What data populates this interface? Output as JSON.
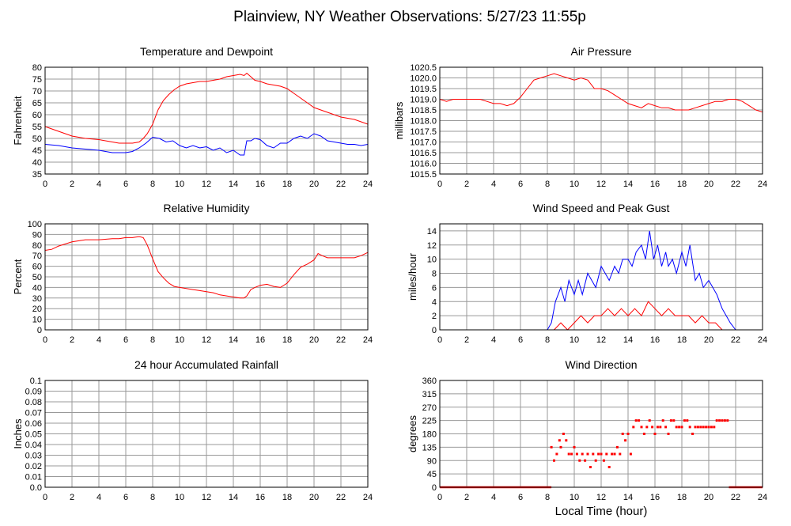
{
  "page": {
    "title": "Plainview, NY Weather Observations: 5/27/23 11:55p",
    "footer_xlabel": "Local Time (hour)"
  },
  "colors": {
    "temperature": "#ff0000",
    "dewpoint": "#0000ff",
    "pressure": "#ff0000",
    "humidity": "#ff0000",
    "wind_speed": "#ff0000",
    "peak_gust": "#0000ff",
    "rainfall": "#ff0000",
    "wind_direction": "#ff0000",
    "grid": "#999999",
    "frame": "#000000"
  },
  "chart_data": [
    {
      "id": "temp",
      "type": "line",
      "title": "Temperature and Dewpoint",
      "xlabel": "",
      "ylabel": "Fahrenheit",
      "xlim": [
        0,
        24
      ],
      "ylim": [
        35,
        80
      ],
      "xticks": [
        0,
        2,
        4,
        6,
        8,
        10,
        12,
        14,
        16,
        18,
        20,
        22,
        24
      ],
      "yticks": [
        35,
        40,
        45,
        50,
        55,
        60,
        65,
        70,
        75,
        80
      ],
      "grid": true,
      "series": [
        {
          "color": "temperature",
          "x": [
            0,
            1,
            2,
            3,
            4,
            5,
            5.5,
            6,
            6.5,
            7,
            7.3,
            7.6,
            8,
            8.4,
            8.8,
            9.2,
            9.6,
            10,
            10.5,
            11,
            11.5,
            12,
            12.5,
            13,
            13.5,
            14,
            14.5,
            14.8,
            15,
            15.3,
            15.6,
            16,
            16.5,
            17,
            17.5,
            18,
            18.5,
            19,
            19.5,
            20,
            20.5,
            21,
            21.5,
            22,
            22.5,
            23,
            23.5,
            24
          ],
          "y": [
            55,
            53,
            51,
            50,
            49.5,
            48.5,
            48,
            48,
            48,
            48.5,
            50,
            52,
            56,
            62,
            66,
            68.5,
            70.5,
            72,
            73,
            73.5,
            74,
            74,
            74.5,
            75,
            76,
            76.5,
            77,
            76.5,
            77.5,
            76,
            74.5,
            74,
            73,
            72.5,
            72,
            71,
            69,
            67,
            65,
            63,
            62,
            61,
            60,
            59,
            58.5,
            58,
            57,
            56
          ]
        },
        {
          "color": "dewpoint",
          "x": [
            0,
            1,
            2,
            3,
            4,
            5,
            5.5,
            6,
            6.5,
            7,
            7.5,
            8,
            8.5,
            9,
            9.5,
            10,
            10.5,
            11,
            11.5,
            12,
            12.5,
            13,
            13.5,
            14,
            14.5,
            14.8,
            15,
            15.3,
            15.6,
            16,
            16.5,
            17,
            17.5,
            18,
            18.5,
            19,
            19.5,
            20,
            20.5,
            21,
            21.5,
            22,
            22.5,
            23,
            23.5,
            24
          ],
          "y": [
            47.5,
            47,
            46,
            45.5,
            45,
            44,
            44,
            44,
            44.5,
            46,
            48,
            50.5,
            50,
            48.5,
            49,
            47,
            46,
            47,
            46,
            46.5,
            45,
            46,
            44,
            45,
            43,
            43,
            49,
            49,
            50,
            49.5,
            47,
            46,
            48,
            48,
            50,
            51,
            50,
            52,
            51,
            49,
            48.5,
            48,
            47.5,
            47.5,
            47,
            47.5
          ]
        }
      ]
    },
    {
      "id": "pressure",
      "type": "line",
      "title": "Air Pressure",
      "xlabel": "",
      "ylabel": "millibars",
      "xlim": [
        0,
        24
      ],
      "ylim": [
        1015.5,
        1020.5
      ],
      "xticks": [
        0,
        2,
        4,
        6,
        8,
        10,
        12,
        14,
        16,
        18,
        20,
        22,
        24
      ],
      "yticks": [
        1015.5,
        1016.0,
        1016.5,
        1017.0,
        1017.5,
        1018.0,
        1018.5,
        1019.0,
        1019.5,
        1020.0,
        1020.5
      ],
      "ytick_labels": [
        "1015.5",
        "1016.0",
        "1016.5",
        "1017.0",
        "1017.5",
        "1018.0",
        "1018.5",
        "1019.0",
        "1019.5",
        "1020.0",
        "1020.5"
      ],
      "grid": true,
      "series": [
        {
          "color": "pressure",
          "x": [
            0,
            0.5,
            1,
            2,
            3,
            3.5,
            4,
            4.5,
            5,
            5.5,
            6,
            6.5,
            7,
            7.5,
            8,
            8.5,
            9,
            9.5,
            10,
            10.5,
            11,
            11.5,
            12,
            12.5,
            13,
            13.5,
            14,
            14.5,
            15,
            15.5,
            16,
            16.5,
            17,
            17.5,
            18,
            18.5,
            19,
            19.5,
            20,
            20.5,
            21,
            21.5,
            22,
            22.5,
            23,
            23.5,
            24
          ],
          "y": [
            1019,
            1018.9,
            1019,
            1019,
            1019,
            1018.9,
            1018.8,
            1018.8,
            1018.7,
            1018.8,
            1019.1,
            1019.5,
            1019.9,
            1020.0,
            1020.1,
            1020.2,
            1020.1,
            1020.0,
            1019.9,
            1020.0,
            1019.9,
            1019.5,
            1019.5,
            1019.4,
            1019.2,
            1019.0,
            1018.8,
            1018.7,
            1018.6,
            1018.8,
            1018.7,
            1018.6,
            1018.6,
            1018.5,
            1018.5,
            1018.5,
            1018.6,
            1018.7,
            1018.8,
            1018.9,
            1018.9,
            1019.0,
            1019.0,
            1018.9,
            1018.7,
            1018.5,
            1018.4
          ]
        }
      ]
    },
    {
      "id": "humidity",
      "type": "line",
      "title": "Relative Humidity",
      "xlabel": "",
      "ylabel": "Percent",
      "xlim": [
        0,
        24
      ],
      "ylim": [
        0,
        100
      ],
      "xticks": [
        0,
        2,
        4,
        6,
        8,
        10,
        12,
        14,
        16,
        18,
        20,
        22,
        24
      ],
      "yticks": [
        0,
        10,
        20,
        30,
        40,
        50,
        60,
        70,
        80,
        90,
        100
      ],
      "grid": true,
      "series": [
        {
          "color": "humidity",
          "x": [
            0,
            0.5,
            1,
            2,
            3,
            4,
            5,
            5.5,
            6,
            6.5,
            7,
            7.3,
            7.6,
            8,
            8.4,
            8.8,
            9.2,
            9.6,
            10,
            10.5,
            11,
            11.5,
            12,
            12.5,
            13,
            13.5,
            14,
            14.5,
            14.8,
            15,
            15.3,
            15.6,
            16,
            16.5,
            17,
            17.5,
            18,
            18.5,
            19,
            19.5,
            20,
            20.3,
            20.6,
            21,
            21.5,
            22,
            22.5,
            23,
            23.5,
            24
          ],
          "y": [
            75,
            76,
            79,
            83,
            85,
            85,
            86,
            86,
            87,
            87,
            88,
            87,
            80,
            67,
            55,
            49,
            44,
            41,
            40,
            39,
            38,
            37,
            36,
            35,
            33,
            32,
            31,
            30,
            30,
            32,
            38,
            40,
            42,
            43,
            41,
            40,
            44,
            52,
            59,
            62,
            66,
            72,
            70,
            68,
            68,
            68,
            68,
            68,
            70,
            73
          ]
        }
      ]
    },
    {
      "id": "wind",
      "type": "line",
      "title": "Wind Speed and Peak Gust",
      "xlabel": "",
      "ylabel": "miles/hour",
      "xlim": [
        0,
        24
      ],
      "ylim": [
        0,
        15
      ],
      "xticks": [
        0,
        2,
        4,
        6,
        8,
        10,
        12,
        14,
        16,
        18,
        20,
        22,
        24
      ],
      "yticks": [
        0,
        2,
        4,
        6,
        8,
        10,
        12,
        14
      ],
      "grid": true,
      "series": [
        {
          "color": "peak_gust",
          "x": [
            0,
            8,
            8.3,
            8.6,
            9,
            9.3,
            9.6,
            10,
            10.3,
            10.6,
            11,
            11.3,
            11.6,
            12,
            12.3,
            12.6,
            13,
            13.3,
            13.6,
            14,
            14.3,
            14.6,
            15,
            15.3,
            15.6,
            15.9,
            16.2,
            16.5,
            16.8,
            17,
            17.3,
            17.6,
            18,
            18.3,
            18.6,
            19,
            19.3,
            19.6,
            20,
            20.3,
            20.6,
            21,
            21.3,
            21.6,
            22,
            24
          ],
          "y": [
            0,
            0,
            1,
            4,
            6,
            4,
            7,
            5,
            7,
            5,
            8,
            7,
            6,
            9,
            8,
            7,
            9,
            8,
            10,
            10,
            9,
            11,
            12,
            10,
            14,
            10,
            12,
            9,
            11,
            9,
            10,
            8,
            11,
            9,
            12,
            7,
            8,
            6,
            7,
            6,
            5,
            3,
            2,
            1,
            0,
            0
          ]
        },
        {
          "color": "wind_speed",
          "x": [
            0,
            8,
            8.5,
            9,
            9.5,
            10,
            10.5,
            11,
            11.5,
            12,
            12.5,
            13,
            13.5,
            14,
            14.5,
            15,
            15.5,
            16,
            16.5,
            17,
            17.5,
            18,
            18.5,
            19,
            19.5,
            20,
            20.5,
            21,
            22,
            24
          ],
          "y": [
            0,
            0,
            0,
            1,
            0,
            1,
            2,
            1,
            2,
            2,
            3,
            2,
            3,
            2,
            3,
            2,
            4,
            3,
            2,
            3,
            2,
            2,
            2,
            1,
            2,
            1,
            1,
            0,
            0,
            0
          ]
        }
      ]
    },
    {
      "id": "rain",
      "type": "line",
      "title": "24 hour Accumulated Rainfall",
      "xlabel": "",
      "ylabel": "Inches",
      "xlim": [
        0,
        24
      ],
      "ylim": [
        0,
        0.1
      ],
      "xticks": [
        0,
        2,
        4,
        6,
        8,
        10,
        12,
        14,
        16,
        18,
        20,
        22,
        24
      ],
      "yticks": [
        0,
        0.01,
        0.02,
        0.03,
        0.04,
        0.05,
        0.06,
        0.07,
        0.08,
        0.09,
        0.1
      ],
      "ytick_labels": [
        "0.0",
        "0.01",
        "0.02",
        "0.03",
        "0.04",
        "0.05",
        "0.06",
        "0.07",
        "0.08",
        "0.09",
        "0.1"
      ],
      "grid": true,
      "series": [
        {
          "color": "rainfall",
          "x": [
            0,
            24
          ],
          "y": [
            0,
            0
          ]
        }
      ]
    },
    {
      "id": "winddir",
      "type": "scatter",
      "title": "Wind Direction",
      "xlabel": "",
      "ylabel": "degrees",
      "xlim": [
        0,
        24
      ],
      "ylim": [
        0,
        360
      ],
      "xticks": [
        0,
        2,
        4,
        6,
        8,
        10,
        12,
        14,
        16,
        18,
        20,
        22,
        24
      ],
      "yticks": [
        0,
        45,
        90,
        135,
        180,
        225,
        270,
        315,
        360
      ],
      "grid": true,
      "series": [
        {
          "color": "wind_direction",
          "x": [
            8.3,
            8.5,
            8.7,
            8.9,
            9.0,
            9.2,
            9.4,
            9.6,
            9.8,
            10.0,
            10.2,
            10.4,
            10.6,
            10.8,
            11.0,
            11.2,
            11.4,
            11.6,
            11.8,
            12.0,
            12.2,
            12.4,
            12.6,
            12.8,
            13.0,
            13.2,
            13.4,
            13.6,
            13.8,
            14.0,
            14.2,
            14.4,
            14.6,
            14.8,
            15.0,
            15.2,
            15.4,
            15.6,
            15.8,
            16.0,
            16.2,
            16.4,
            16.6,
            16.8,
            17.0,
            17.2,
            17.4,
            17.6,
            17.8,
            18.0,
            18.2,
            18.4,
            18.6,
            18.8,
            19.0,
            19.2,
            19.4,
            19.6,
            19.8,
            20.0,
            20.2,
            20.4,
            20.6,
            20.8,
            21.0,
            21.2,
            21.4
          ],
          "y": [
            135,
            90,
            112,
            158,
            135,
            180,
            158,
            112,
            112,
            135,
            112,
            90,
            112,
            90,
            112,
            68,
            112,
            90,
            112,
            112,
            90,
            112,
            68,
            112,
            112,
            135,
            112,
            180,
            158,
            180,
            112,
            203,
            225,
            225,
            203,
            180,
            203,
            225,
            203,
            180,
            203,
            203,
            225,
            203,
            180,
            225,
            225,
            203,
            203,
            203,
            225,
            225,
            203,
            180,
            203,
            203,
            203,
            203,
            203,
            203,
            203,
            203,
            225,
            225,
            225,
            225,
            225
          ]
        }
      ]
    }
  ]
}
